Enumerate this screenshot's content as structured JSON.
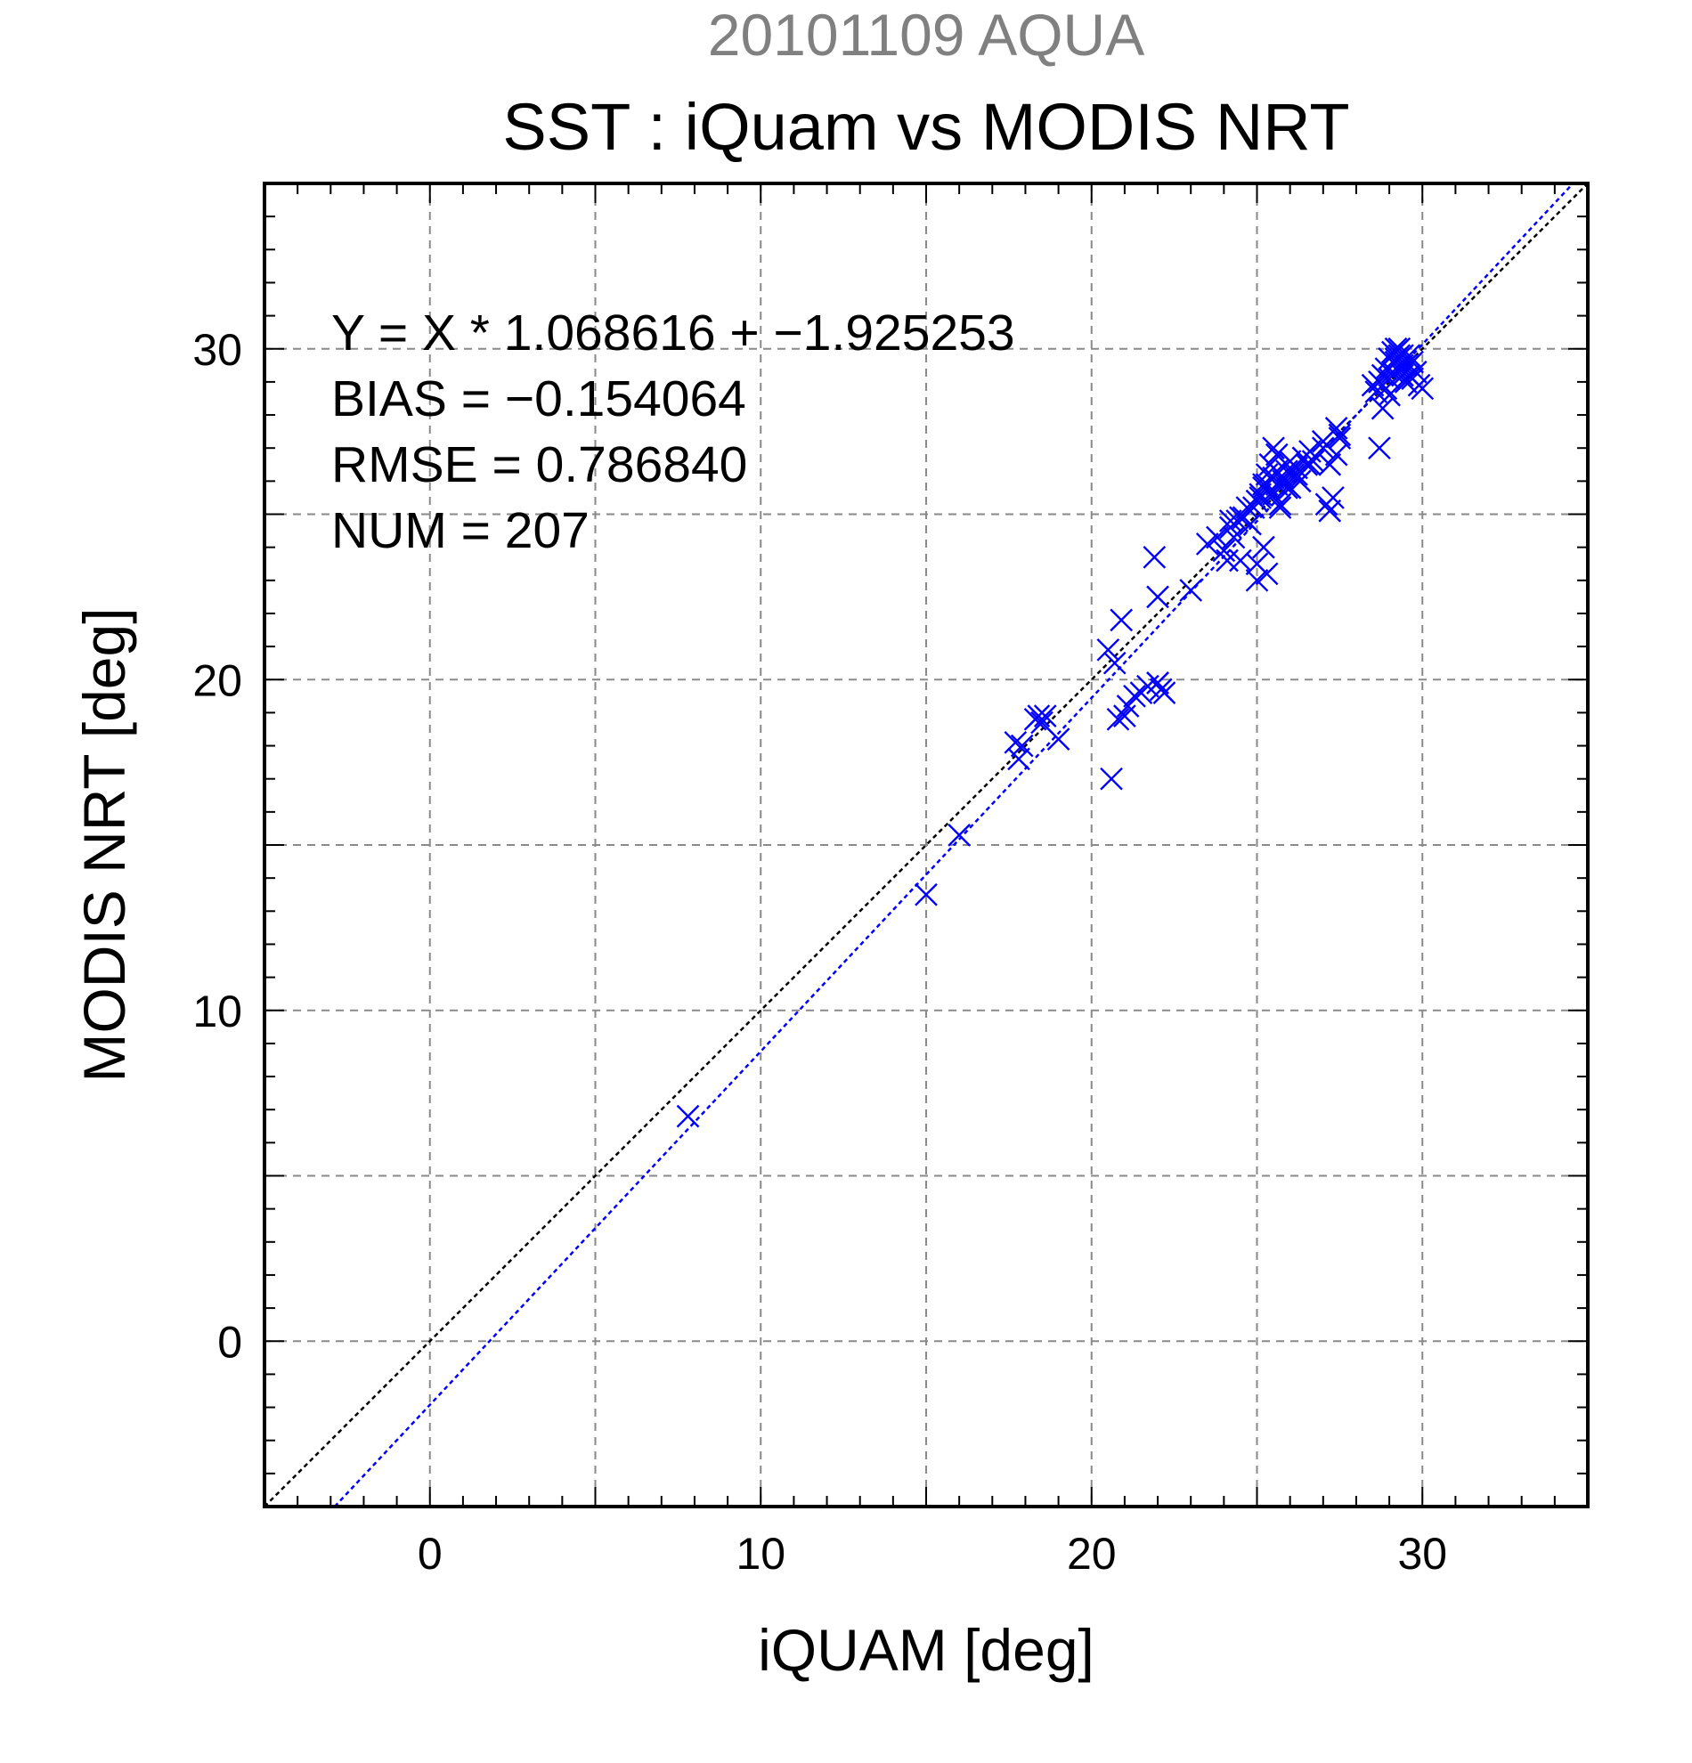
{
  "chart_data": {
    "type": "scatter",
    "supertitle": "20101109 AQUA",
    "title": "SST : iQuam vs MODIS NRT",
    "xlabel": "iQUAM [deg]",
    "ylabel": "MODIS NRT [deg]",
    "xlim": [
      -5,
      35
    ],
    "ylim": [
      -5,
      35
    ],
    "xticks": [
      0,
      10,
      20,
      30
    ],
    "yticks": [
      0,
      10,
      20,
      30
    ],
    "xtick_labels": [
      "0",
      "10",
      "20",
      "30"
    ],
    "ytick_labels": [
      "0",
      "10",
      "20",
      "30"
    ],
    "grid": true,
    "grid_step": 5,
    "minor_tick_step": 1,
    "stats": [
      "Y = X * 1.068616 + −1.925253",
      "BIAS = −0.154064",
      "RMSE = 0.786840",
      "NUM = 207"
    ],
    "fit_line": {
      "slope": 1.068616,
      "intercept": -1.925253,
      "color": "#0000ff",
      "style": "dotted"
    },
    "identity_line": {
      "slope": 1,
      "intercept": 0,
      "color": "#000000",
      "style": "dotted"
    },
    "marker": "x",
    "marker_color": "#0000ff",
    "series": [
      {
        "x": [
          7.8,
          15.0,
          16.0,
          17.7,
          17.8,
          17.9,
          18.3,
          18.4,
          18.5,
          18.6,
          19.0,
          20.5,
          20.6,
          20.7,
          20.8,
          20.9,
          21.0,
          21.1,
          21.3,
          21.5,
          21.7,
          21.9,
          22.0,
          22.0,
          22.1,
          22.0,
          22.2,
          23.0,
          23.5,
          23.8,
          24.0,
          24.1,
          24.2,
          24.3,
          24.4,
          24.5,
          24.6,
          24.8,
          24.9,
          25.0,
          25.0,
          25.1,
          25.2,
          25.3,
          25.4,
          25.5,
          25.6,
          25.7,
          25.8,
          25.9,
          26.0,
          26.1,
          26.3,
          26.5,
          26.7,
          25.0,
          25.2,
          25.3,
          25.5,
          25.6,
          25.4,
          25.2,
          25.5,
          25.7,
          25.9,
          26.2,
          26.4,
          26.6,
          27.0,
          27.1,
          27.2,
          27.3,
          27.4,
          27.5,
          27.0,
          27.2,
          27.4,
          28.5,
          28.6,
          28.7,
          28.8,
          28.9,
          29.0,
          29.1,
          29.2,
          29.3,
          29.4,
          29.5,
          29.6,
          29.7,
          29.8,
          29.0,
          29.1,
          29.2,
          29.3,
          29.4,
          29.5,
          28.7,
          28.8,
          29.6,
          29.7,
          29.9,
          30.0,
          24.2,
          24.5,
          24.7,
          25.1,
          25.3,
          25.6,
          25.8,
          26.0,
          26.2,
          26.4,
          26.6,
          27.5,
          28.9,
          29.0,
          29.2,
          29.4,
          29.3
        ],
        "y": [
          6.8,
          13.5,
          15.3,
          18.1,
          17.6,
          18.0,
          18.8,
          18.9,
          18.7,
          18.9,
          18.2,
          20.9,
          17.0,
          20.5,
          18.8,
          21.8,
          18.9,
          19.2,
          19.5,
          19.6,
          19.8,
          23.7,
          22.5,
          19.9,
          19.7,
          19.9,
          19.6,
          22.7,
          24.1,
          24.3,
          23.9,
          23.6,
          24.6,
          24.3,
          24.8,
          23.6,
          24.9,
          24.7,
          25.2,
          25.4,
          23.0,
          25.5,
          25.8,
          26.2,
          25.6,
          26.1,
          25.9,
          25.3,
          26.0,
          26.3,
          25.8,
          26.2,
          26.0,
          26.5,
          26.6,
          23.5,
          24.0,
          23.2,
          27.0,
          26.8,
          26.5,
          25.9,
          25.6,
          25.2,
          25.8,
          26.4,
          26.7,
          26.9,
          27.2,
          25.3,
          25.1,
          25.5,
          26.8,
          27.3,
          27.0,
          26.5,
          27.6,
          28.9,
          28.7,
          29.0,
          29.2,
          28.8,
          29.1,
          29.3,
          29.6,
          29.4,
          29.2,
          29.5,
          29.8,
          29.1,
          29.3,
          28.6,
          29.9,
          29.7,
          30.0,
          29.8,
          29.0,
          27.0,
          28.2,
          29.2,
          29.6,
          28.9,
          28.8,
          24.8,
          24.9,
          25.2,
          25.6,
          25.9,
          26.3,
          26.1,
          26.6,
          26.2,
          26.7,
          26.5,
          27.4,
          29.4,
          29.7,
          30.0,
          29.5,
          29.8
        ]
      }
    ]
  }
}
